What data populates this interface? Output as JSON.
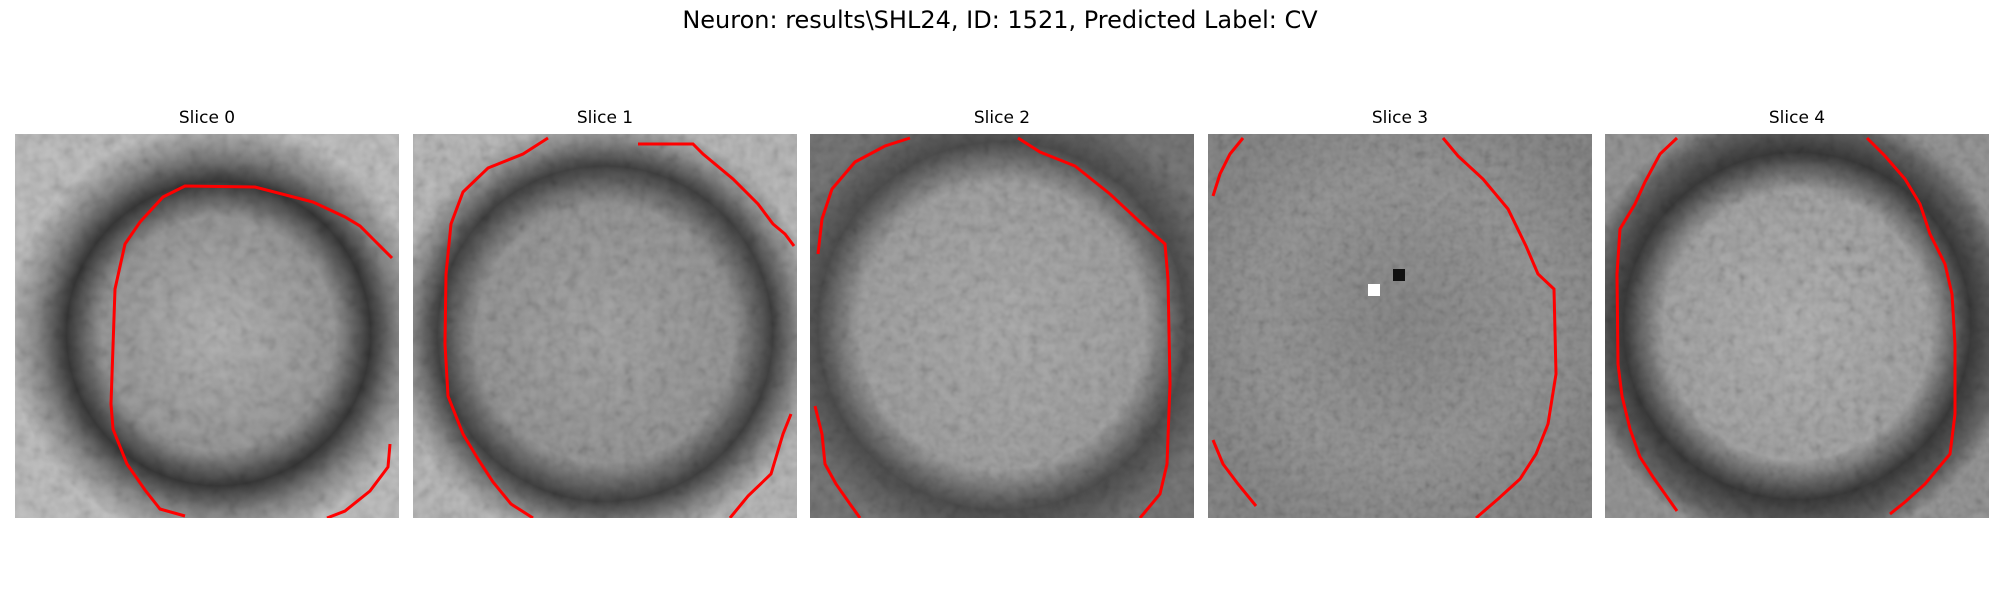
{
  "figure": {
    "title": "Neuron: results\\SHL24, ID: 1521, Predicted Label: CV"
  },
  "slices": [
    {
      "title": "Slice 0"
    },
    {
      "title": "Slice 1"
    },
    {
      "title": "Slice 2"
    },
    {
      "title": "Slice 3"
    },
    {
      "title": "Slice 4"
    }
  ],
  "style": {
    "contour_color": "#ff0000",
    "colormap": "gray"
  }
}
